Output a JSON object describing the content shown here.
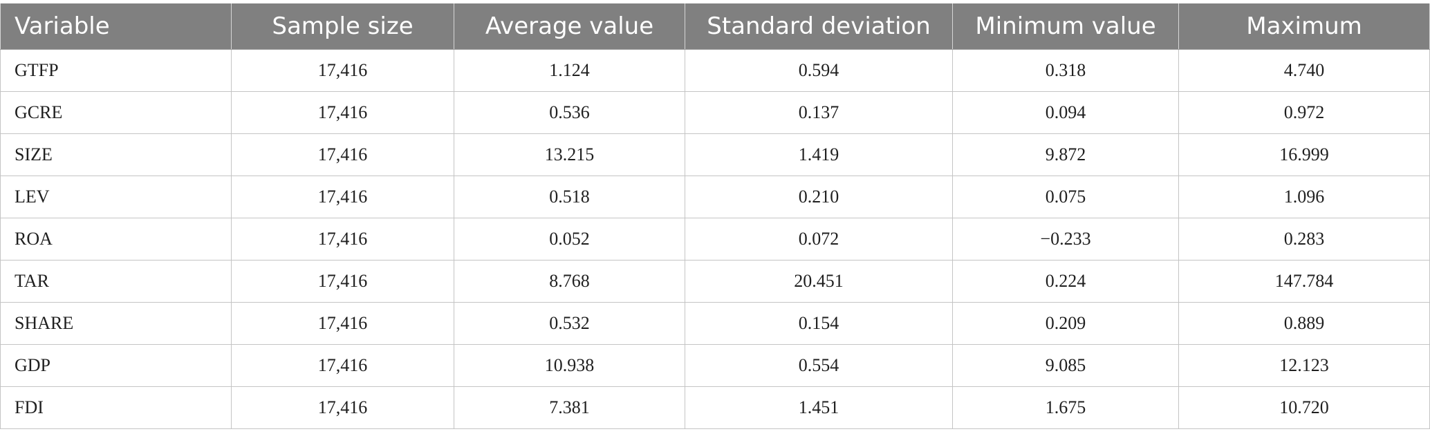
{
  "table": {
    "headers": [
      "Variable",
      "Sample size",
      "Average value",
      "Standard deviation",
      "Minimum value",
      "Maximum"
    ],
    "rows": [
      [
        "GTFP",
        "17,416",
        "1.124",
        "0.594",
        "0.318",
        "4.740"
      ],
      [
        "GCRE",
        "17,416",
        "0.536",
        "0.137",
        "0.094",
        "0.972"
      ],
      [
        "SIZE",
        "17,416",
        "13.215",
        "1.419",
        "9.872",
        "16.999"
      ],
      [
        "LEV",
        "17,416",
        "0.518",
        "0.210",
        "0.075",
        "1.096"
      ],
      [
        "ROA",
        "17,416",
        "0.052",
        "0.072",
        "−0.233",
        "0.283"
      ],
      [
        "TAR",
        "17,416",
        "8.768",
        "20.451",
        "0.224",
        "147.784"
      ],
      [
        "SHARE",
        "17,416",
        "0.532",
        "0.154",
        "0.209",
        "0.889"
      ],
      [
        "GDP",
        "17,416",
        "10.938",
        "0.554",
        "9.085",
        "12.123"
      ],
      [
        "FDI",
        "17,416",
        "7.381",
        "1.451",
        "1.675",
        "10.720"
      ]
    ]
  },
  "colors": {
    "header_background": "#808080",
    "header_text": "#ffffff",
    "cell_text": "#1f1f1f",
    "grid_line": "#c4c4c4"
  }
}
